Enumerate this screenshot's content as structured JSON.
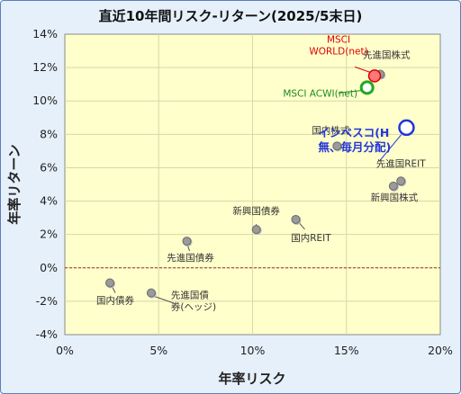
{
  "chart_data": {
    "type": "scatter",
    "title": "直近10年間リスク-リターン(2025/5末日)",
    "xlabel": "年率リスク",
    "ylabel": "年率リターン",
    "xlim": [
      0,
      20
    ],
    "ylim": [
      -4,
      14
    ],
    "x_ticks": [
      "0%",
      "5%",
      "10%",
      "15%",
      "20%"
    ],
    "y_ticks": [
      "-4%",
      "-2%",
      "0%",
      "2%",
      "4%",
      "6%",
      "8%",
      "10%",
      "12%",
      "14%"
    ],
    "grid": true,
    "zero_line": true,
    "points": [
      {
        "label": "先進国株式",
        "x": 16.8,
        "y": 11.6,
        "style": "grey"
      },
      {
        "label": "MSCI\nWORLD(net)",
        "x": 16.5,
        "y": 11.5,
        "style": "red"
      },
      {
        "label": "MSCI ACWI(net)",
        "x": 16.1,
        "y": 10.8,
        "style": "green"
      },
      {
        "label": "国内株式",
        "x": 14.5,
        "y": 7.3,
        "style": "grey"
      },
      {
        "label": "インベスコ(H\n無、毎月分配)",
        "x": 18.2,
        "y": 8.4,
        "style": "blue"
      },
      {
        "label": "先進国REIT",
        "x": 17.9,
        "y": 5.2,
        "style": "grey"
      },
      {
        "label": "新興国株式",
        "x": 17.5,
        "y": 4.9,
        "style": "grey"
      },
      {
        "label": "新興国債券",
        "x": 10.2,
        "y": 2.3,
        "style": "grey"
      },
      {
        "label": "国内REIT",
        "x": 12.3,
        "y": 2.9,
        "style": "grey"
      },
      {
        "label": "先進国債券",
        "x": 6.5,
        "y": 1.6,
        "style": "grey"
      },
      {
        "label": "国内債券",
        "x": 2.4,
        "y": -0.9,
        "style": "grey"
      },
      {
        "label": "先進国債\n券(ヘッジ)",
        "x": 4.6,
        "y": -1.5,
        "style": "grey"
      }
    ]
  },
  "colors": {
    "plot_bg": "#ffffcc",
    "grey_point": "#9a9a9a",
    "red_point": "#ff7777",
    "green_point": "#22a822",
    "blue_point": "#2236d6",
    "zero_line": "#a03030"
  }
}
